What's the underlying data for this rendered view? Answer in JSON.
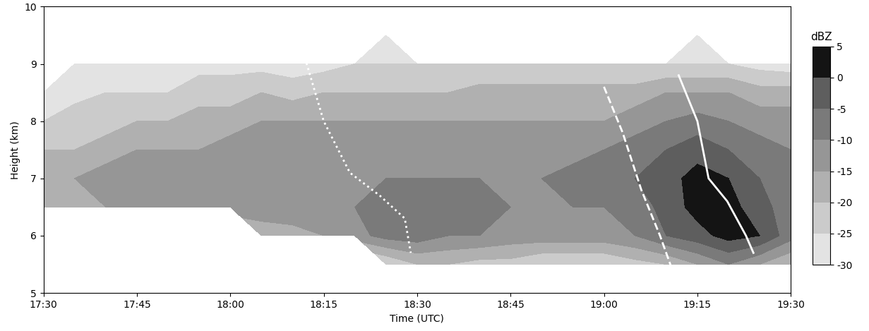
{
  "chart_data": {
    "type": "heatmap",
    "xlabel": "Time (UTC)",
    "ylabel": "Height (km)",
    "xlim": [
      17.5,
      19.5
    ],
    "xticks": [
      {
        "value": 17.5,
        "label": "17:30"
      },
      {
        "value": 17.75,
        "label": "17:45"
      },
      {
        "value": 18.0,
        "label": "18:00"
      },
      {
        "value": 18.25,
        "label": "18:15"
      },
      {
        "value": 18.5,
        "label": "18:30"
      },
      {
        "value": 18.75,
        "label": "18:45"
      },
      {
        "value": 19.0,
        "label": "19:00"
      },
      {
        "value": 19.25,
        "label": "19:15"
      },
      {
        "value": 19.5,
        "label": "19:30"
      }
    ],
    "ylim": [
      5,
      10
    ],
    "yticks": [
      5,
      6,
      7,
      8,
      9,
      10
    ],
    "grid": false,
    "x": [
      17.5,
      17.5833,
      17.6667,
      17.75,
      17.8333,
      17.9167,
      18.0,
      18.0833,
      18.1667,
      18.25,
      18.3333,
      18.4167,
      18.5,
      18.5833,
      18.6667,
      18.75,
      18.8333,
      18.9167,
      19.0,
      19.0833,
      19.1667,
      19.25,
      19.3333,
      19.4167,
      19.5
    ],
    "y": [
      5.0,
      5.5,
      6.0,
      6.5,
      7.0,
      7.5,
      8.0,
      8.5,
      9.0,
      9.5,
      10.0
    ],
    "values": [
      [
        null,
        null,
        null,
        -15,
        -15,
        -20,
        -25,
        -28,
        null,
        null,
        null
      ],
      [
        null,
        null,
        null,
        -15,
        -15,
        -20,
        -22,
        -27,
        -29,
        null,
        null
      ],
      [
        null,
        null,
        null,
        -15,
        -12,
        -18,
        -22,
        -25,
        -28,
        null,
        null
      ],
      [
        null,
        null,
        null,
        -12,
        -12,
        -15,
        -20,
        -25,
        -28,
        null,
        null
      ],
      [
        null,
        null,
        null,
        -12,
        -10,
        -15,
        -20,
        -25,
        -28,
        null,
        null
      ],
      [
        null,
        null,
        null,
        -10,
        -10,
        -15,
        -18,
        -22,
        -27,
        null,
        null
      ],
      [
        null,
        null,
        null,
        -12,
        -10,
        -12,
        -18,
        -22,
        -27,
        null,
        null
      ],
      [
        null,
        null,
        -20,
        -10,
        -10,
        -12,
        -15,
        -20,
        -27,
        null,
        null
      ],
      [
        null,
        null,
        -18,
        -10,
        -10,
        -12,
        -15,
        -22,
        -28,
        null,
        null
      ],
      [
        null,
        null,
        -15,
        -10,
        -10,
        -12,
        -15,
        -20,
        -27,
        null,
        null
      ],
      [
        null,
        null,
        -12,
        -10,
        -10,
        -12,
        -15,
        -20,
        -25,
        null,
        null
      ],
      [
        null,
        -25,
        -8,
        -8,
        -10,
        -12,
        -15,
        -20,
        -25,
        -29,
        null
      ],
      [
        null,
        -20,
        -7,
        -8,
        -10,
        -12,
        -15,
        -20,
        -25,
        null,
        null
      ],
      [
        null,
        -20,
        -10,
        -8,
        -10,
        -12,
        -15,
        -20,
        -25,
        null,
        null
      ],
      [
        null,
        -22,
        -10,
        -8,
        -10,
        -12,
        -15,
        -18,
        -25,
        null,
        null
      ],
      [
        null,
        -22,
        -12,
        -10,
        -10,
        -12,
        -15,
        -18,
        -25,
        null,
        null
      ],
      [
        null,
        -25,
        -12,
        -10,
        -10,
        -12,
        -15,
        -18,
        -25,
        null,
        null
      ],
      [
        null,
        -25,
        -12,
        -10,
        -8,
        -12,
        -15,
        -18,
        -25,
        null,
        null
      ],
      [
        null,
        -25,
        -12,
        -10,
        -8,
        -10,
        -15,
        -18,
        -25,
        null,
        null
      ],
      [
        null,
        -22,
        -10,
        -8,
        -5,
        -8,
        -12,
        -18,
        -25,
        null,
        null
      ],
      [
        null,
        -20,
        -5,
        -3,
        -2,
        -5,
        -10,
        -15,
        -25,
        null,
        null
      ],
      [
        null,
        -15,
        -2,
        2,
        2,
        -2,
        -8,
        -15,
        -25,
        -29,
        null
      ],
      [
        null,
        -10,
        2,
        2,
        0,
        -5,
        -10,
        -15,
        -25,
        null,
        null
      ],
      [
        null,
        -15,
        0,
        -3,
        -5,
        -8,
        -12,
        -18,
        -27,
        null,
        null
      ],
      [
        null,
        -20,
        -8,
        -8,
        -8,
        -10,
        -12,
        -18,
        -28,
        null,
        null
      ]
    ],
    "colorbar": {
      "label": "dBZ",
      "range": [
        -30,
        5
      ],
      "ticks": [
        -30,
        -25,
        -20,
        -15,
        -10,
        -5,
        0,
        5
      ]
    },
    "colors": [
      "#e3e3e3",
      "#cbcbcb",
      "#b0b0b0",
      "#969696",
      "#7a7a7a",
      "#5e5e5e",
      "#3a3a3a",
      "#141414"
    ],
    "series": [
      {
        "x": [
          18.2,
          18.25,
          18.32,
          18.4,
          18.467,
          18.483
        ],
        "values": [
          9.1,
          8.0,
          7.1,
          6.7,
          6.3,
          5.7
        ],
        "color": "#ffffff",
        "line_style": "dotted"
      },
      {
        "x": [
          19.0,
          19.05,
          19.1,
          19.15,
          19.183
        ],
        "values": [
          8.6,
          7.8,
          6.8,
          6.0,
          5.4
        ],
        "color": "#ffffff",
        "line_style": "dashed"
      },
      {
        "x": [
          19.2,
          19.25,
          19.28,
          19.33,
          19.38,
          19.4
        ],
        "values": [
          8.8,
          8.0,
          7.0,
          6.6,
          6.0,
          5.7
        ],
        "color": "#ffffff",
        "line_style": "solid"
      }
    ]
  }
}
